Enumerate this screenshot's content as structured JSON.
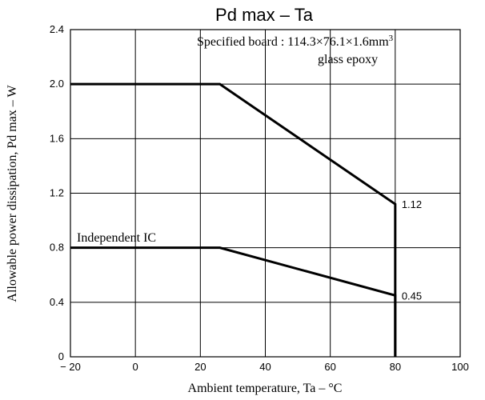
{
  "chart_data": {
    "type": "line",
    "title": "Pd max  –  Ta",
    "xlabel": "Ambient temperature,  Ta  –  °C",
    "ylabel": "Allowable power dissipation,  Pd max  –  W",
    "xlim": [
      -20,
      100
    ],
    "ylim": [
      0,
      2.4
    ],
    "grid": true,
    "xticks": [
      -20,
      0,
      20,
      40,
      60,
      80,
      100
    ],
    "xtick_labels": [
      "− 20",
      "0",
      "20",
      "40",
      "60",
      "80",
      "100"
    ],
    "yticks": [
      0,
      0.4,
      0.8,
      1.2,
      1.6,
      2.0,
      2.4
    ],
    "ytick_labels": [
      "0",
      "0.4",
      "0.8",
      "1.2",
      "1.6",
      "2.0",
      "2.4"
    ],
    "series": [
      {
        "x": [
          -20,
          26,
          80,
          80
        ],
        "y": [
          2.0,
          2.0,
          1.12,
          0
        ]
      },
      {
        "name": "Independent IC",
        "x": [
          -20,
          26,
          80,
          80
        ],
        "y": [
          0.8,
          0.8,
          0.45,
          0
        ]
      }
    ],
    "data_labels": [
      {
        "x": 80,
        "y": 1.12,
        "text": "1.12"
      },
      {
        "x": 80,
        "y": 0.45,
        "text": "0.45"
      }
    ],
    "annotations": [
      {
        "text": "Specified board : 114.3×76.1×1.6mm",
        "superscript": "3"
      },
      {
        "text": "glass epoxy"
      },
      {
        "text": "Independent IC"
      }
    ]
  }
}
